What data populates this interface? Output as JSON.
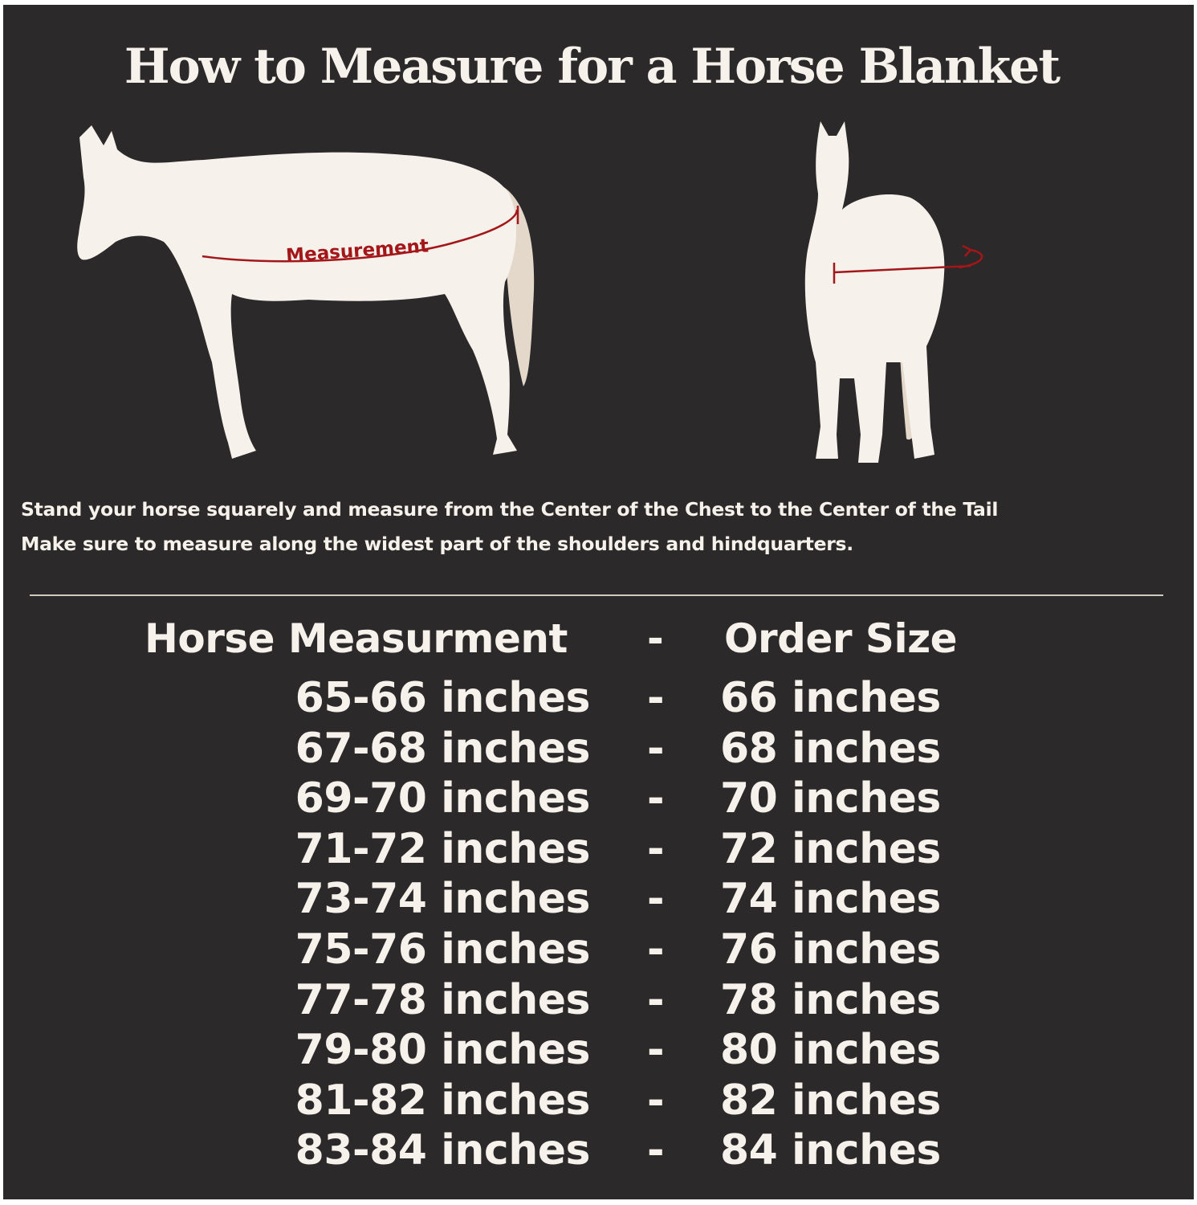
{
  "title": "How to Measure for a Horse Blanket",
  "diagram": {
    "measurement_label": "Measurement",
    "colors": {
      "background": "#2b2929",
      "horse": "#f6f1eb",
      "tail": "#e4d8cb",
      "measure_line": "#a3161a"
    }
  },
  "instructions": [
    "Stand your horse squarely and measure from the Center of the Chest to the Center of the Tail",
    "Make sure to measure along the widest part of the shoulders and hindquarters."
  ],
  "table": {
    "headers": {
      "measurement": "Horse Measurment",
      "separator": "-",
      "size": "Order Size"
    },
    "rows": [
      {
        "measurement": "65-66 inches",
        "separator": "-",
        "size": "66 inches"
      },
      {
        "measurement": "67-68 inches",
        "separator": "-",
        "size": "68 inches"
      },
      {
        "measurement": "69-70 inches",
        "separator": "-",
        "size": "70 inches"
      },
      {
        "measurement": "71-72 inches",
        "separator": "-",
        "size": "72 inches"
      },
      {
        "measurement": "73-74 inches",
        "separator": "-",
        "size": "74 inches"
      },
      {
        "measurement": "75-76 inches",
        "separator": "-",
        "size": "76 inches"
      },
      {
        "measurement": "77-78 inches",
        "separator": "-",
        "size": "78 inches"
      },
      {
        "measurement": "79-80 inches",
        "separator": "-",
        "size": "80 inches"
      },
      {
        "measurement": "81-82 inches",
        "separator": "-",
        "size": "82 inches"
      },
      {
        "measurement": "83-84 inches",
        "separator": "-",
        "size": "84 inches"
      }
    ]
  }
}
